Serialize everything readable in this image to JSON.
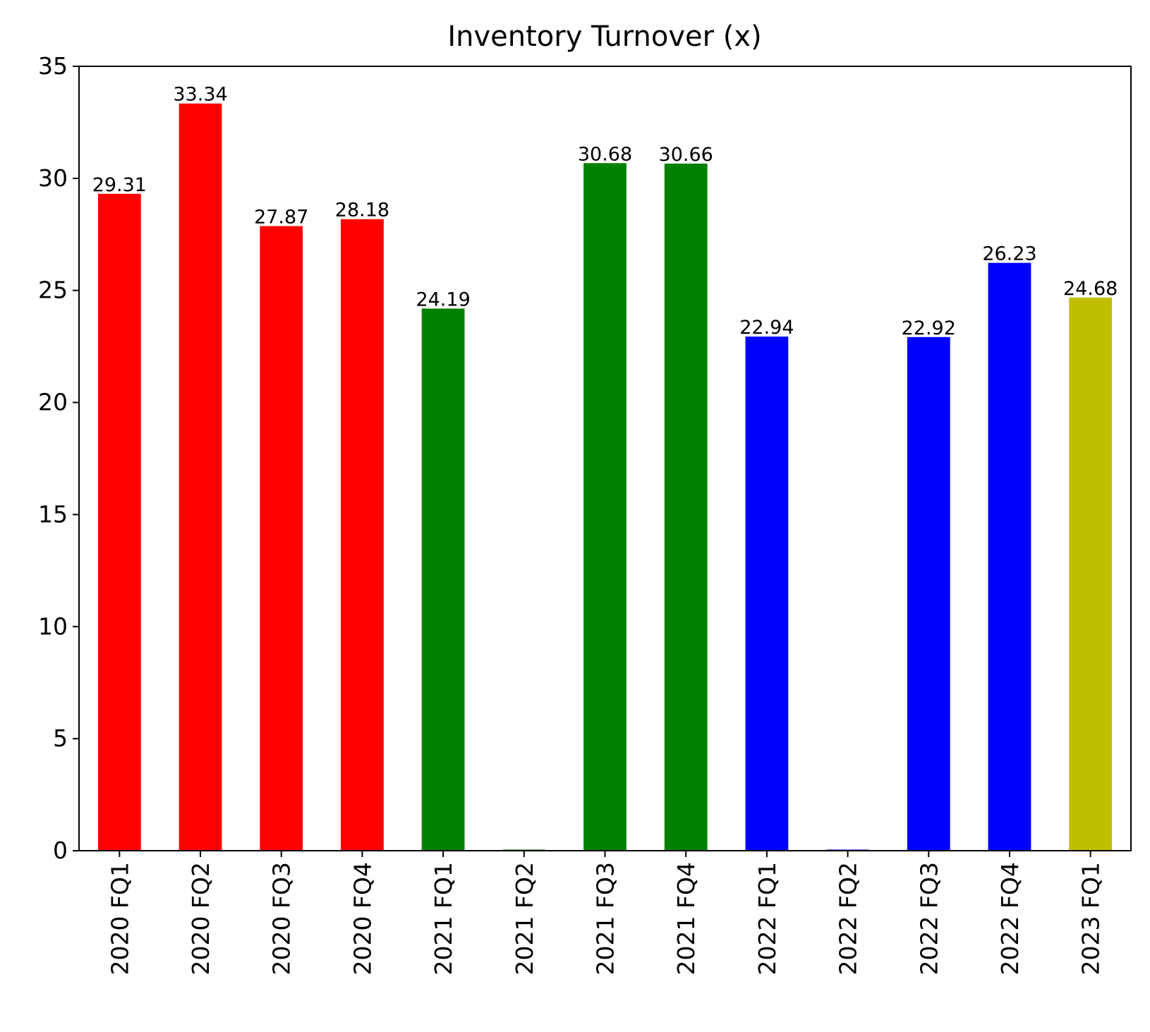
{
  "chart_data": {
    "type": "bar",
    "title": "Inventory Turnover (x)",
    "xlabel": "",
    "ylabel": "",
    "ylim": [
      0,
      35
    ],
    "yticks": [
      0,
      5,
      10,
      15,
      20,
      25,
      30,
      35
    ],
    "grid": false,
    "categories": [
      "2020 FQ1",
      "2020 FQ2",
      "2020 FQ3",
      "2020 FQ4",
      "2021 FQ1",
      "2021 FQ2",
      "2021 FQ3",
      "2021 FQ4",
      "2022 FQ1",
      "2022 FQ2",
      "2022 FQ3",
      "2022 FQ4",
      "2023 FQ1"
    ],
    "values": [
      29.31,
      33.34,
      27.87,
      28.18,
      24.19,
      0.05,
      30.68,
      30.66,
      22.94,
      0.05,
      22.92,
      26.23,
      24.68
    ],
    "value_labels": [
      "29.31",
      "33.34",
      "27.87",
      "28.18",
      "24.19",
      "",
      "30.68",
      "30.66",
      "22.94",
      "",
      "22.92",
      "26.23",
      "24.68"
    ],
    "colors": [
      "#ff0000",
      "#ff0000",
      "#ff0000",
      "#ff0000",
      "#008000",
      "#008000",
      "#008000",
      "#008000",
      "#0000ff",
      "#0000ff",
      "#0000ff",
      "#0000ff",
      "#bfbf00"
    ]
  }
}
